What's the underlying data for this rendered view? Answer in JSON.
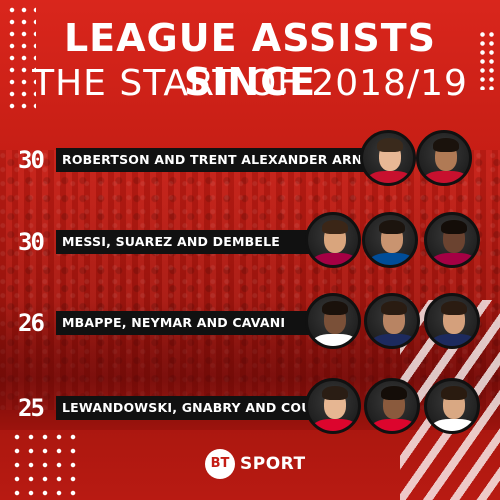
{
  "title": {
    "line1": "LEAGUE ASSISTS SINCE",
    "line2": "THE START OF 2018/19"
  },
  "rows": [
    {
      "count": "30",
      "label": "ROBERTSON AND TRENT ALEXANDER ARNOLD",
      "players": [
        {
          "skin": "#e8b895",
          "hair": "#3a2a1c",
          "shirt": "#c8102e"
        },
        {
          "skin": "#b07a55",
          "hair": "#1a120c",
          "shirt": "#c8102e"
        }
      ]
    },
    {
      "count": "30",
      "label": "MESSI, SUAREZ AND DEMBELE",
      "players": [
        {
          "skin": "#d9a57d",
          "hair": "#3b2617",
          "shirt": "#a50044"
        },
        {
          "skin": "#c99470",
          "hair": "#1c140e",
          "shirt": "#004d98"
        },
        {
          "skin": "#6b4330",
          "hair": "#140d08",
          "shirt": "#a50044"
        }
      ]
    },
    {
      "count": "26",
      "label": "MBAPPE, NEYMAR AND CAVANI",
      "players": [
        {
          "skin": "#7a5038",
          "hair": "#1a110b",
          "shirt": "#ffffff"
        },
        {
          "skin": "#b88463",
          "hair": "#2a1c12",
          "shirt": "#1d2a5e"
        },
        {
          "skin": "#d4a07c",
          "hair": "#2b1c12",
          "shirt": "#1d2a5e"
        }
      ]
    },
    {
      "count": "25",
      "label": "LEWANDOWSKI, GNABRY AND COUTINHO",
      "players": [
        {
          "skin": "#e6b692",
          "hair": "#2a1d14",
          "shirt": "#dc052d"
        },
        {
          "skin": "#8a5a3d",
          "hair": "#140d08",
          "shirt": "#dc052d"
        },
        {
          "skin": "#d9a883",
          "hair": "#2a1b10",
          "shirt": "#ffffff"
        }
      ]
    }
  ],
  "logo": {
    "mark": "BT",
    "text": "SPORT"
  },
  "colors": {
    "accent": "#c41d14",
    "bar": "#111111",
    "text": "#ffffff"
  }
}
